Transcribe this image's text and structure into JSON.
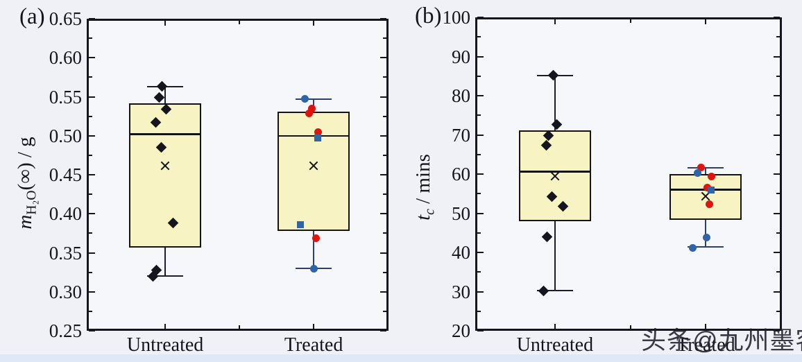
{
  "watermark": {
    "text": "头条@九州墨客"
  },
  "colors": {
    "box_fill": "#f7f3c2",
    "box_border": "#131313",
    "frame": "#15151f",
    "diamond": "#15151f",
    "red": "#e0140e",
    "blue": "#2f64a8",
    "whisker_untreated": "#1c1c2a",
    "whisker_treated": "#2c3f6e"
  },
  "chart_data": [
    {
      "type": "box",
      "label": "(a)",
      "ylabel": "m_H2O(∞) / g",
      "ylabel_segments": [
        {
          "text": "m",
          "italic": true
        },
        {
          "text": "H₂O",
          "sub": true
        },
        {
          "text": "(∞) / g"
        }
      ],
      "ylim": [
        0.25,
        0.65
      ],
      "y_ticks": [
        "0.65",
        "0.60",
        "0.55",
        "0.50",
        "0.45",
        "0.40",
        "0.35",
        "0.30",
        "0.25"
      ],
      "categories": [
        "Untreated",
        "Treated"
      ],
      "boxes": [
        {
          "category": "Untreated",
          "whisker_high": 0.563,
          "q3": 0.542,
          "median": 0.502,
          "q1": 0.357,
          "whisker_low": 0.32,
          "mean": 0.462,
          "whisker_color": "whisker_untreated",
          "points": [
            {
              "v": 0.563,
              "dx": -5,
              "type": "diamond"
            },
            {
              "v": 0.549,
              "dx": -9,
              "type": "diamond"
            },
            {
              "v": 0.534,
              "dx": 1,
              "type": "diamond"
            },
            {
              "v": 0.517,
              "dx": -14,
              "type": "diamond"
            },
            {
              "v": 0.485,
              "dx": -6,
              "type": "diamond"
            },
            {
              "v": 0.388,
              "dx": 11,
              "type": "diamond"
            },
            {
              "v": 0.328,
              "dx": -13,
              "type": "diamond"
            },
            {
              "v": 0.32,
              "dx": -18,
              "type": "diamond"
            }
          ]
        },
        {
          "category": "Treated",
          "whisker_high": 0.547,
          "q3": 0.531,
          "median": 0.5,
          "q1": 0.378,
          "whisker_low": 0.33,
          "mean": 0.462,
          "whisker_color": "whisker_treated",
          "points": [
            {
              "v": 0.547,
              "dx": -13,
              "type": "circle_blue"
            },
            {
              "v": 0.535,
              "dx": -3,
              "type": "circle_red"
            },
            {
              "v": 0.529,
              "dx": -7,
              "type": "circle_red"
            },
            {
              "v": 0.505,
              "dx": 6,
              "type": "circle_red"
            },
            {
              "v": 0.497,
              "dx": 6,
              "type": "square_blue"
            },
            {
              "v": 0.386,
              "dx": -19,
              "type": "square_blue"
            },
            {
              "v": 0.369,
              "dx": 3,
              "type": "circle_red"
            },
            {
              "v": 0.33,
              "dx": 0,
              "type": "circle_blue"
            }
          ]
        }
      ]
    },
    {
      "type": "box",
      "label": "(b)",
      "ylabel": "t_c / mins",
      "ylabel_segments": [
        {
          "text": "t",
          "italic": true
        },
        {
          "text": "c",
          "sub": true,
          "italic": true
        },
        {
          "text": " / mins"
        }
      ],
      "ylim": [
        20,
        100
      ],
      "y_ticks": [
        "100",
        "90",
        "80",
        "70",
        "60",
        "50",
        "40",
        "30",
        "20"
      ],
      "categories": [
        "Untreated",
        "Treated"
      ],
      "boxes": [
        {
          "category": "Untreated",
          "whisker_high": 85.2,
          "q3": 71.2,
          "median": 60.6,
          "q1": 47.9,
          "whisker_low": 30.2,
          "mean": 59.4,
          "whisker_color": "whisker_untreated",
          "points": [
            {
              "v": 85.2,
              "dx": -2,
              "type": "diamond"
            },
            {
              "v": 72.6,
              "dx": 3,
              "type": "diamond"
            },
            {
              "v": 69.9,
              "dx": -9,
              "type": "diamond"
            },
            {
              "v": 67.4,
              "dx": -12,
              "type": "diamond"
            },
            {
              "v": 54.3,
              "dx": -4,
              "type": "diamond"
            },
            {
              "v": 51.7,
              "dx": 12,
              "type": "diamond"
            },
            {
              "v": 43.9,
              "dx": -11,
              "type": "diamond"
            },
            {
              "v": 30.2,
              "dx": -16,
              "type": "diamond"
            }
          ]
        },
        {
          "category": "Treated",
          "whisker_high": 61.6,
          "q3": 60.0,
          "median": 56.0,
          "q1": 48.3,
          "whisker_low": 41.4,
          "mean": 54.4,
          "whisker_color": "whisker_treated",
          "points": [
            {
              "v": 61.7,
              "dx": -7,
              "type": "circle_red"
            },
            {
              "v": 60.3,
              "dx": -12,
              "type": "circle_blue"
            },
            {
              "v": 59.3,
              "dx": 8,
              "type": "circle_red"
            },
            {
              "v": 56.6,
              "dx": 2,
              "type": "circle_red"
            },
            {
              "v": 56.0,
              "dx": 8,
              "type": "square_blue"
            },
            {
              "v": 52.3,
              "dx": 5,
              "type": "circle_red"
            },
            {
              "v": 43.8,
              "dx": 1,
              "type": "circle_blue"
            },
            {
              "v": 41.2,
              "dx": -19,
              "type": "circle_blue"
            }
          ]
        }
      ]
    }
  ]
}
